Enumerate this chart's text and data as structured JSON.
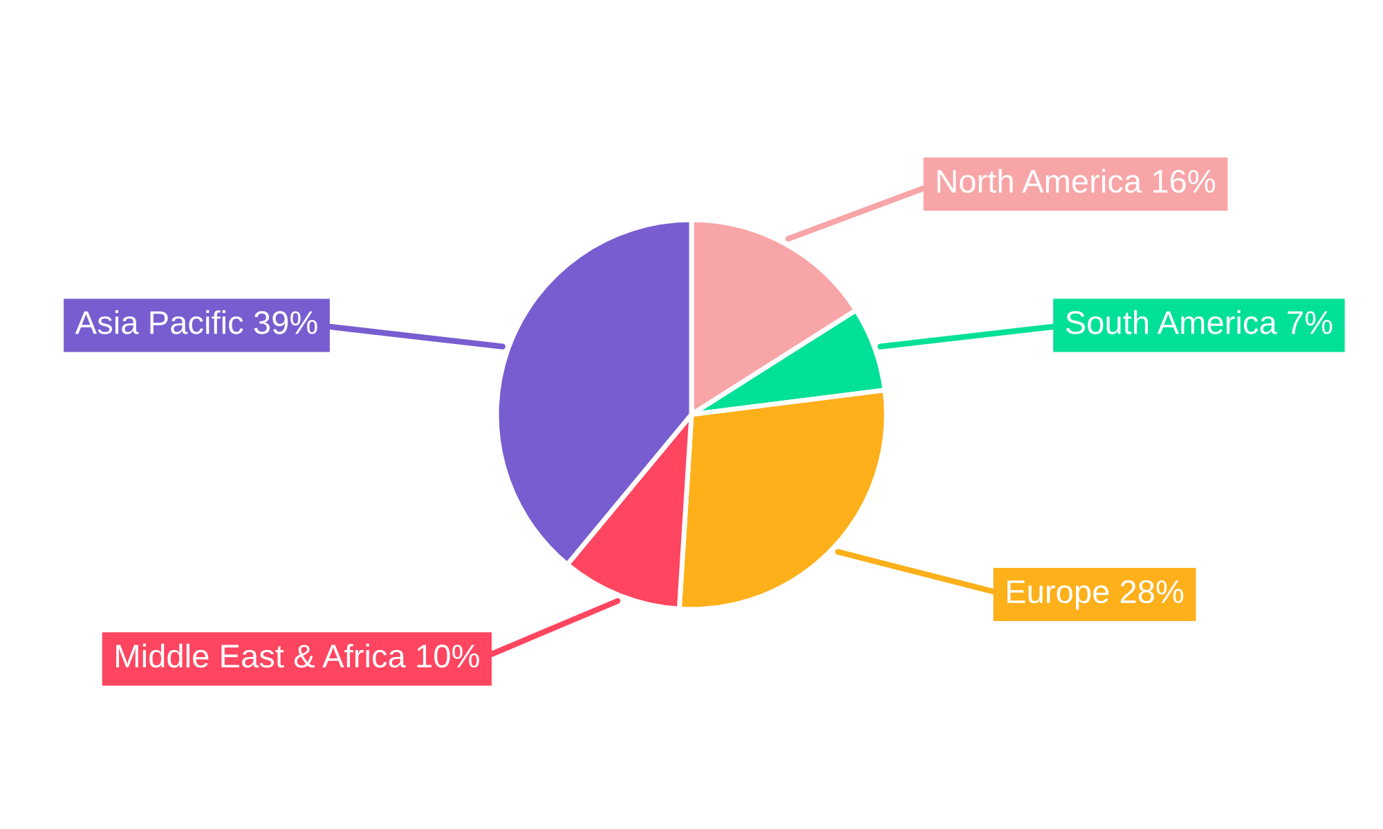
{
  "chart_data": {
    "type": "pie",
    "categories": [
      "North America",
      "South America",
      "Europe",
      "Middle East & Africa",
      "Asia Pacific"
    ],
    "values": [
      16,
      7,
      28,
      10,
      39
    ],
    "value_labels": [
      "16%",
      "7%",
      "28%",
      "10%",
      "39%"
    ],
    "colors": [
      "#f8a5a8",
      "#00e096",
      "#fdb01a",
      "#ff4560",
      "#775dd0"
    ]
  }
}
